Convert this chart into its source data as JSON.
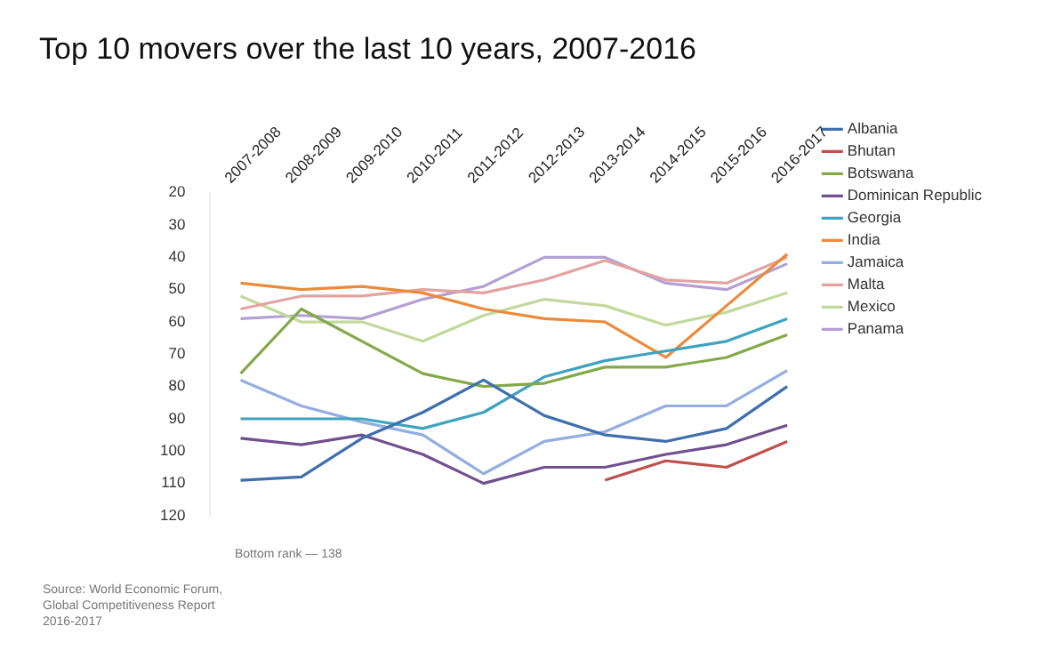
{
  "chart_data": {
    "type": "line",
    "title": "Top 10 movers over the last 10 years, 2007-2016",
    "categories": [
      "2007-2008",
      "2008-2009",
      "2009-2010",
      "2010-2011",
      "2011-2012",
      "2012-2013",
      "2013-2014",
      "2014-2015",
      "2015-2016",
      "2016-2017"
    ],
    "series": [
      {
        "name": "Albania",
        "color": "#3f6fad",
        "values": [
          109,
          108,
          96,
          88,
          78,
          89,
          95,
          97,
          93,
          80
        ]
      },
      {
        "name": "Bhutan",
        "color": "#c0504d",
        "values": [
          null,
          null,
          null,
          null,
          null,
          null,
          109,
          103,
          105,
          97
        ]
      },
      {
        "name": "Botswana",
        "color": "#84a84a",
        "values": [
          76,
          56,
          66,
          76,
          80,
          79,
          74,
          74,
          71,
          64
        ]
      },
      {
        "name": "Dominican Republic",
        "color": "#70508f",
        "values": [
          96,
          98,
          95,
          101,
          110,
          105,
          105,
          101,
          98,
          92
        ]
      },
      {
        "name": "Georgia",
        "color": "#3fa3bd",
        "values": [
          90,
          90,
          90,
          93,
          88,
          77,
          72,
          69,
          66,
          59
        ]
      },
      {
        "name": "India",
        "color": "#ec8a3c",
        "values": [
          48,
          50,
          49,
          51,
          56,
          59,
          60,
          71,
          55,
          39
        ]
      },
      {
        "name": "Jamaica",
        "color": "#93aee0",
        "values": [
          78,
          86,
          91,
          95,
          107,
          97,
          94,
          86,
          86,
          75
        ]
      },
      {
        "name": "Malta",
        "color": "#e2a3a1",
        "values": [
          56,
          52,
          52,
          50,
          51,
          47,
          41,
          47,
          48,
          40
        ]
      },
      {
        "name": "Mexico",
        "color": "#c2d99d",
        "values": [
          52,
          60,
          60,
          66,
          58,
          53,
          55,
          61,
          57,
          51
        ]
      },
      {
        "name": "Panama",
        "color": "#b4a1d3",
        "values": [
          59,
          58,
          59,
          53,
          49,
          40,
          40,
          48,
          50,
          42
        ]
      }
    ],
    "ylim": [
      120,
      20
    ],
    "yticks": [
      20,
      30,
      40,
      50,
      60,
      70,
      80,
      90,
      100,
      110,
      120
    ],
    "grid": false,
    "legend": "right",
    "marker": "none",
    "line_style": "solid",
    "annotations": [
      "Bottom rank — 138",
      "Source: World Economic Forum, Global Competitiveness Report 2016-2017"
    ]
  }
}
